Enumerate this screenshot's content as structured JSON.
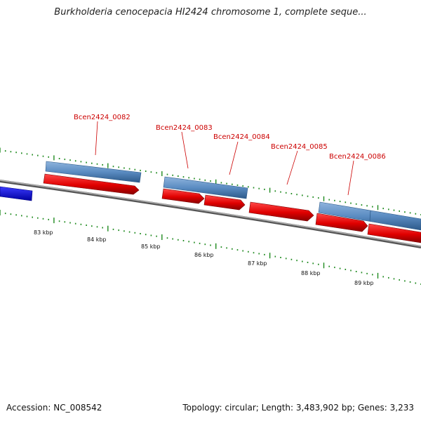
{
  "title": "Burkholderia cenocepacia HI2424 chromosome 1, complete seque...",
  "footer": {
    "accession": "Accession: NC_008542",
    "summary": "Topology: circular; Length: 3,483,902 bp; Genes: 3,233"
  },
  "colors": {
    "forward_feature": "#e00000",
    "forward_feature_dark": "#8a0000",
    "rna_feature": "#5b8cc2",
    "rna_feature_dark": "#2d5a8a",
    "neighbor_feature": "#1010e0",
    "backbone": "#8a8a8a",
    "tick_mark": "#1f8a1f",
    "label_text": "#cc0000"
  },
  "scale": {
    "ticks": [
      "83 kbp",
      "84 kbp",
      "85 kbp",
      "86 kbp",
      "87 kbp",
      "88 kbp",
      "89 kbp"
    ]
  },
  "gene_labels": [
    "Bcen2424_0082",
    "Bcen2424_0083",
    "Bcen2424_0084",
    "Bcen2424_0085",
    "Bcen2424_0086"
  ]
}
